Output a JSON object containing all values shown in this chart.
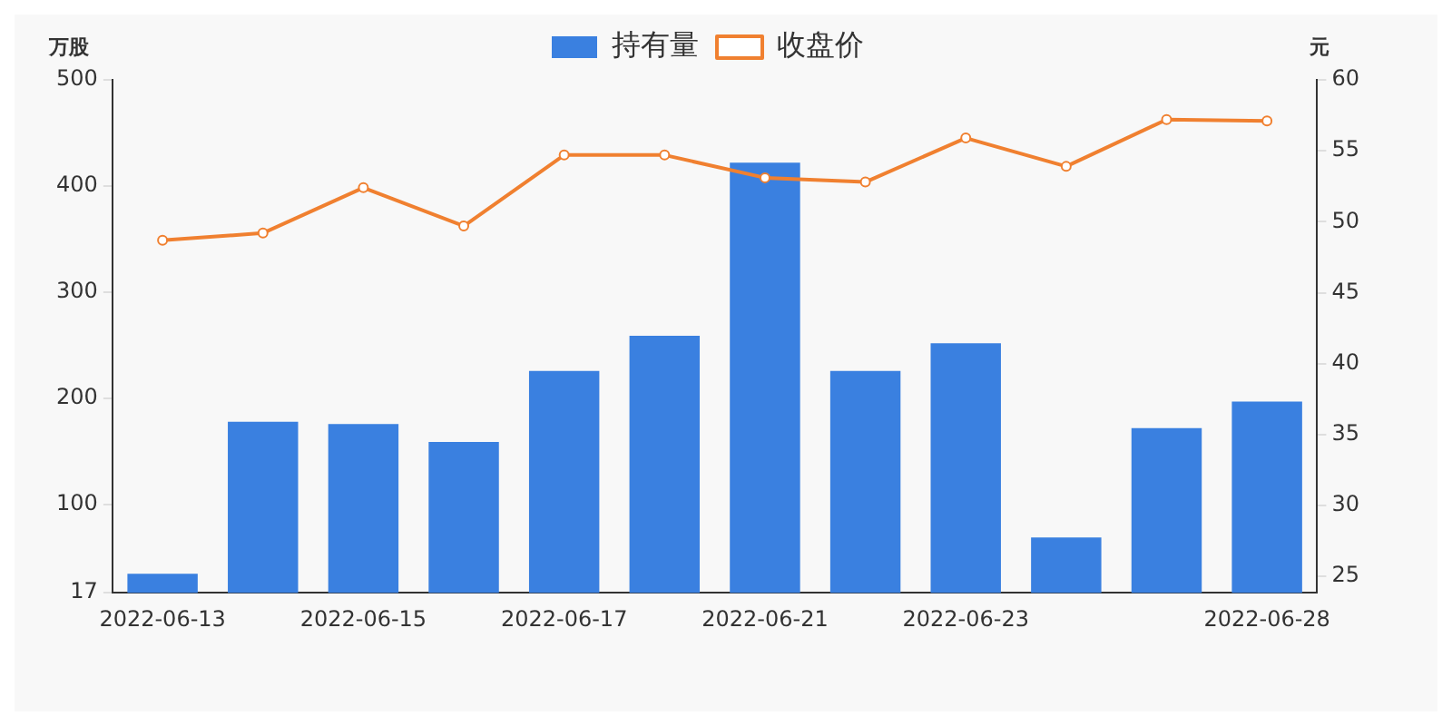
{
  "chart_data": {
    "type": "bar",
    "categories": [
      "2022-06-13",
      null,
      "2022-06-15",
      null,
      "2022-06-17",
      null,
      "2022-06-21",
      null,
      "2022-06-23",
      null,
      null,
      "2022-06-28"
    ],
    "ylabel": "万股",
    "y2label": "元",
    "series": [
      {
        "name": "持有量",
        "color": "#3a80e0",
        "values": [
          35,
          178,
          176,
          159,
          226,
          259,
          422,
          226,
          252,
          69,
          172,
          197
        ]
      },
      {
        "name": "收盘价",
        "type": "line",
        "axis": "y2",
        "color": "#f08030",
        "marker": "circle",
        "values": [
          48.7,
          49.2,
          52.4,
          49.7,
          54.7,
          54.7,
          53.1,
          52.8,
          55.9,
          53.9,
          57.2,
          57.1
        ]
      }
    ],
    "ylim": [
      17,
      500
    ],
    "yticks": [
      17,
      100,
      200,
      300,
      400,
      500
    ],
    "y2lim": [
      23.85,
      60
    ],
    "y2ticks": [
      25,
      30,
      35,
      40,
      45,
      50,
      55,
      60
    ],
    "grid": false,
    "legend": "top"
  }
}
